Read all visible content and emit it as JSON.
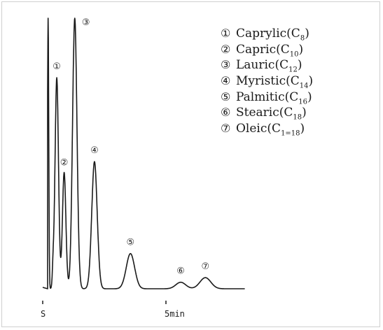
{
  "chart_data": {
    "type": "line",
    "title": "",
    "xlabel": "",
    "ylabel": "",
    "x_axis_ticks": [
      "S",
      "5min"
    ],
    "xlim_min": [
      0,
      8.2
    ],
    "ylim": [
      0,
      100
    ],
    "grid": false,
    "legend_position": "top-right",
    "trace_color": "#1a1a1a",
    "peaks": [
      {
        "label": "①",
        "compound": "Caprylic",
        "carbon": "C",
        "subscript": "8",
        "time_min": 0.57,
        "height": 78
      },
      {
        "label": "②",
        "compound": "Capric",
        "carbon": "C",
        "subscript": "10",
        "time_min": 0.87,
        "height": 43
      },
      {
        "label": "③",
        "compound": "Lauric",
        "carbon": "C",
        "subscript": "12",
        "time_min": 1.3,
        "height": 100
      },
      {
        "label": "④",
        "compound": "Myristic",
        "carbon": "C",
        "subscript": "14",
        "time_min": 2.1,
        "height": 47
      },
      {
        "label": "⑤",
        "compound": "Palmitic",
        "carbon": "C",
        "subscript": "16",
        "time_min": 3.56,
        "height": 13
      },
      {
        "label": "⑥",
        "compound": "Stearic",
        "carbon": "C",
        "subscript": "18",
        "time_min": 5.6,
        "height": 2.4
      },
      {
        "label": "⑦",
        "compound": "Oleic",
        "carbon": "C",
        "subscript": "1=18",
        "time_min": 6.6,
        "height": 4.1
      }
    ]
  }
}
